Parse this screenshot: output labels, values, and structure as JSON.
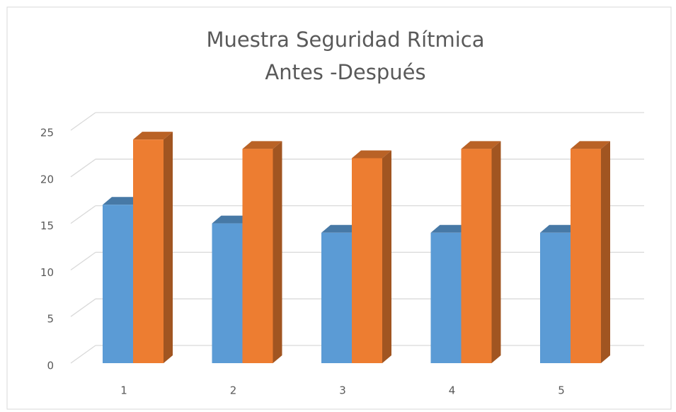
{
  "chart_data": {
    "type": "bar3d",
    "title": [
      "Muestra Seguridad Rítmica",
      "Antes -Después"
    ],
    "categories": [
      "1",
      "2",
      "3",
      "4",
      "5"
    ],
    "series": [
      {
        "color": "#5b9bd5",
        "values": [
          17,
          15,
          14,
          14,
          14
        ]
      },
      {
        "color": "#ed7d31",
        "values": [
          24,
          23,
          22,
          23,
          23
        ]
      }
    ],
    "ylim": [
      0,
      25
    ],
    "yticks": [
      0,
      5,
      10,
      15,
      20,
      25
    ],
    "grid": true
  }
}
